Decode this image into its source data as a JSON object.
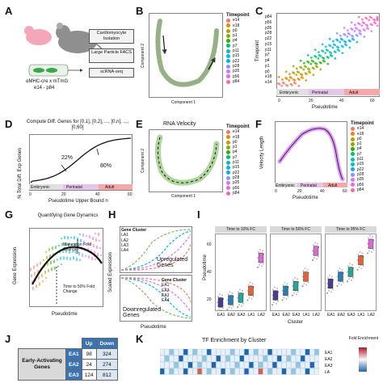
{
  "panels": {
    "A": {
      "label": "A",
      "boxes": [
        "Cardiomyocyte Isolation",
        "Large Particle FACS",
        "scRNA-seq"
      ],
      "mouse_caption": "αMHC-cre x mTmG",
      "age_caption": "e14 - p84"
    },
    "B": {
      "label": "B",
      "xlabel": "Component 1",
      "ylabel": "Component 2",
      "legend_title": "Timepoint"
    },
    "C": {
      "label": "C",
      "xlabel": "Pseudotime",
      "ylabel": "Timepoint",
      "ticks": [
        "0",
        "20",
        "40",
        "60"
      ],
      "stages": [
        "Embryonic",
        "Perinatal",
        "Adult"
      ],
      "y_ticks": [
        "p84",
        "p56",
        "p35",
        "p28",
        "p22",
        "p15",
        "p11",
        "p7",
        "p4",
        "p1",
        "p0",
        "e18",
        "e14"
      ]
    },
    "D": {
      "label": "D",
      "title": "Compute Diff. Genes for [0,1], [0,2], ..., [0,n], ..., [0,60]",
      "xlabel": "Pseudotime Upper Bound n",
      "ylabel": "% Total Diff. Exp Genes",
      "ann1": "22%",
      "ann2": "80%",
      "stages": [
        "Embryonic",
        "Perinatal",
        "Adult"
      ],
      "xticks": [
        "0",
        "20",
        "40",
        "60"
      ]
    },
    "E": {
      "label": "E",
      "title": "RNA Velocity",
      "xlabel": "Component 1",
      "ylabel": "Component 2",
      "legend_title": "Timepoint"
    },
    "F": {
      "label": "F",
      "xlabel": "Pseudotime",
      "ylabel": "Velocity Length",
      "legend_title": "Timepoint",
      "xticks": [
        "0",
        "20",
        "40",
        "60"
      ],
      "stages": [
        "Embryonic",
        "Perinatal",
        "Adult"
      ]
    },
    "G": {
      "label": "G",
      "title": "Quantifying Gene Dynamics",
      "xlabel": "Pseudotime",
      "ylabel": "Gene Expression",
      "ann1": "Maturation Fold Change",
      "ann2": "Time to 50% Fold Change"
    },
    "H": {
      "label": "H",
      "xlabel": "Pseudotime",
      "ylabel": "Scaled Expression",
      "up": "Upregulated Genes",
      "down": "Downregulated Genes",
      "legend_title": "Gene Cluster",
      "clusters": [
        "LA1",
        "LA2",
        "LA3",
        "LA4"
      ],
      "clusters_down": [
        "EA1",
        "EA2",
        "EA3",
        "EA4"
      ]
    },
    "I": {
      "label": "I",
      "xlabel": "Cluster",
      "ylabel": "Pseudotime",
      "facets": [
        "Time to 10% FC",
        "Time to 50% FC",
        "Time to 95% FC"
      ],
      "categories": [
        "EA1",
        "EA2",
        "EA3",
        "LA1",
        "LA2"
      ],
      "yticks": [
        "20",
        "40",
        "60"
      ]
    },
    "J": {
      "label": "J",
      "header": [
        "Up",
        "Down"
      ],
      "row_group": "Early-Activating Genes",
      "rows": [
        {
          "name": "EA1",
          "up": "98",
          "down": "324"
        },
        {
          "name": "EA2",
          "up": "24",
          "down": "274"
        },
        {
          "name": "EA3",
          "up": "124",
          "down": "812"
        }
      ]
    },
    "K": {
      "label": "K",
      "title": "TF Enrichment by Cluster",
      "legend_title": "Fold Enrichment",
      "rows": [
        "EA1",
        "EA2",
        "EA3",
        "LA"
      ]
    }
  },
  "timepoints": [
    {
      "name": "e14",
      "color": "#f8766d"
    },
    {
      "name": "e18",
      "color": "#e18a00"
    },
    {
      "name": "p0",
      "color": "#be9c00"
    },
    {
      "name": "p1",
      "color": "#8cab00"
    },
    {
      "name": "p4",
      "color": "#24b700"
    },
    {
      "name": "p7",
      "color": "#00be70"
    },
    {
      "name": "p11",
      "color": "#00c1ab"
    },
    {
      "name": "p15",
      "color": "#00bbda"
    },
    {
      "name": "p22",
      "color": "#00acfc"
    },
    {
      "name": "p28",
      "color": "#8b93ff"
    },
    {
      "name": "p35",
      "color": "#d575fe"
    },
    {
      "name": "p56",
      "color": "#f962dd"
    },
    {
      "name": "p84",
      "color": "#ff65ac"
    }
  ]
}
